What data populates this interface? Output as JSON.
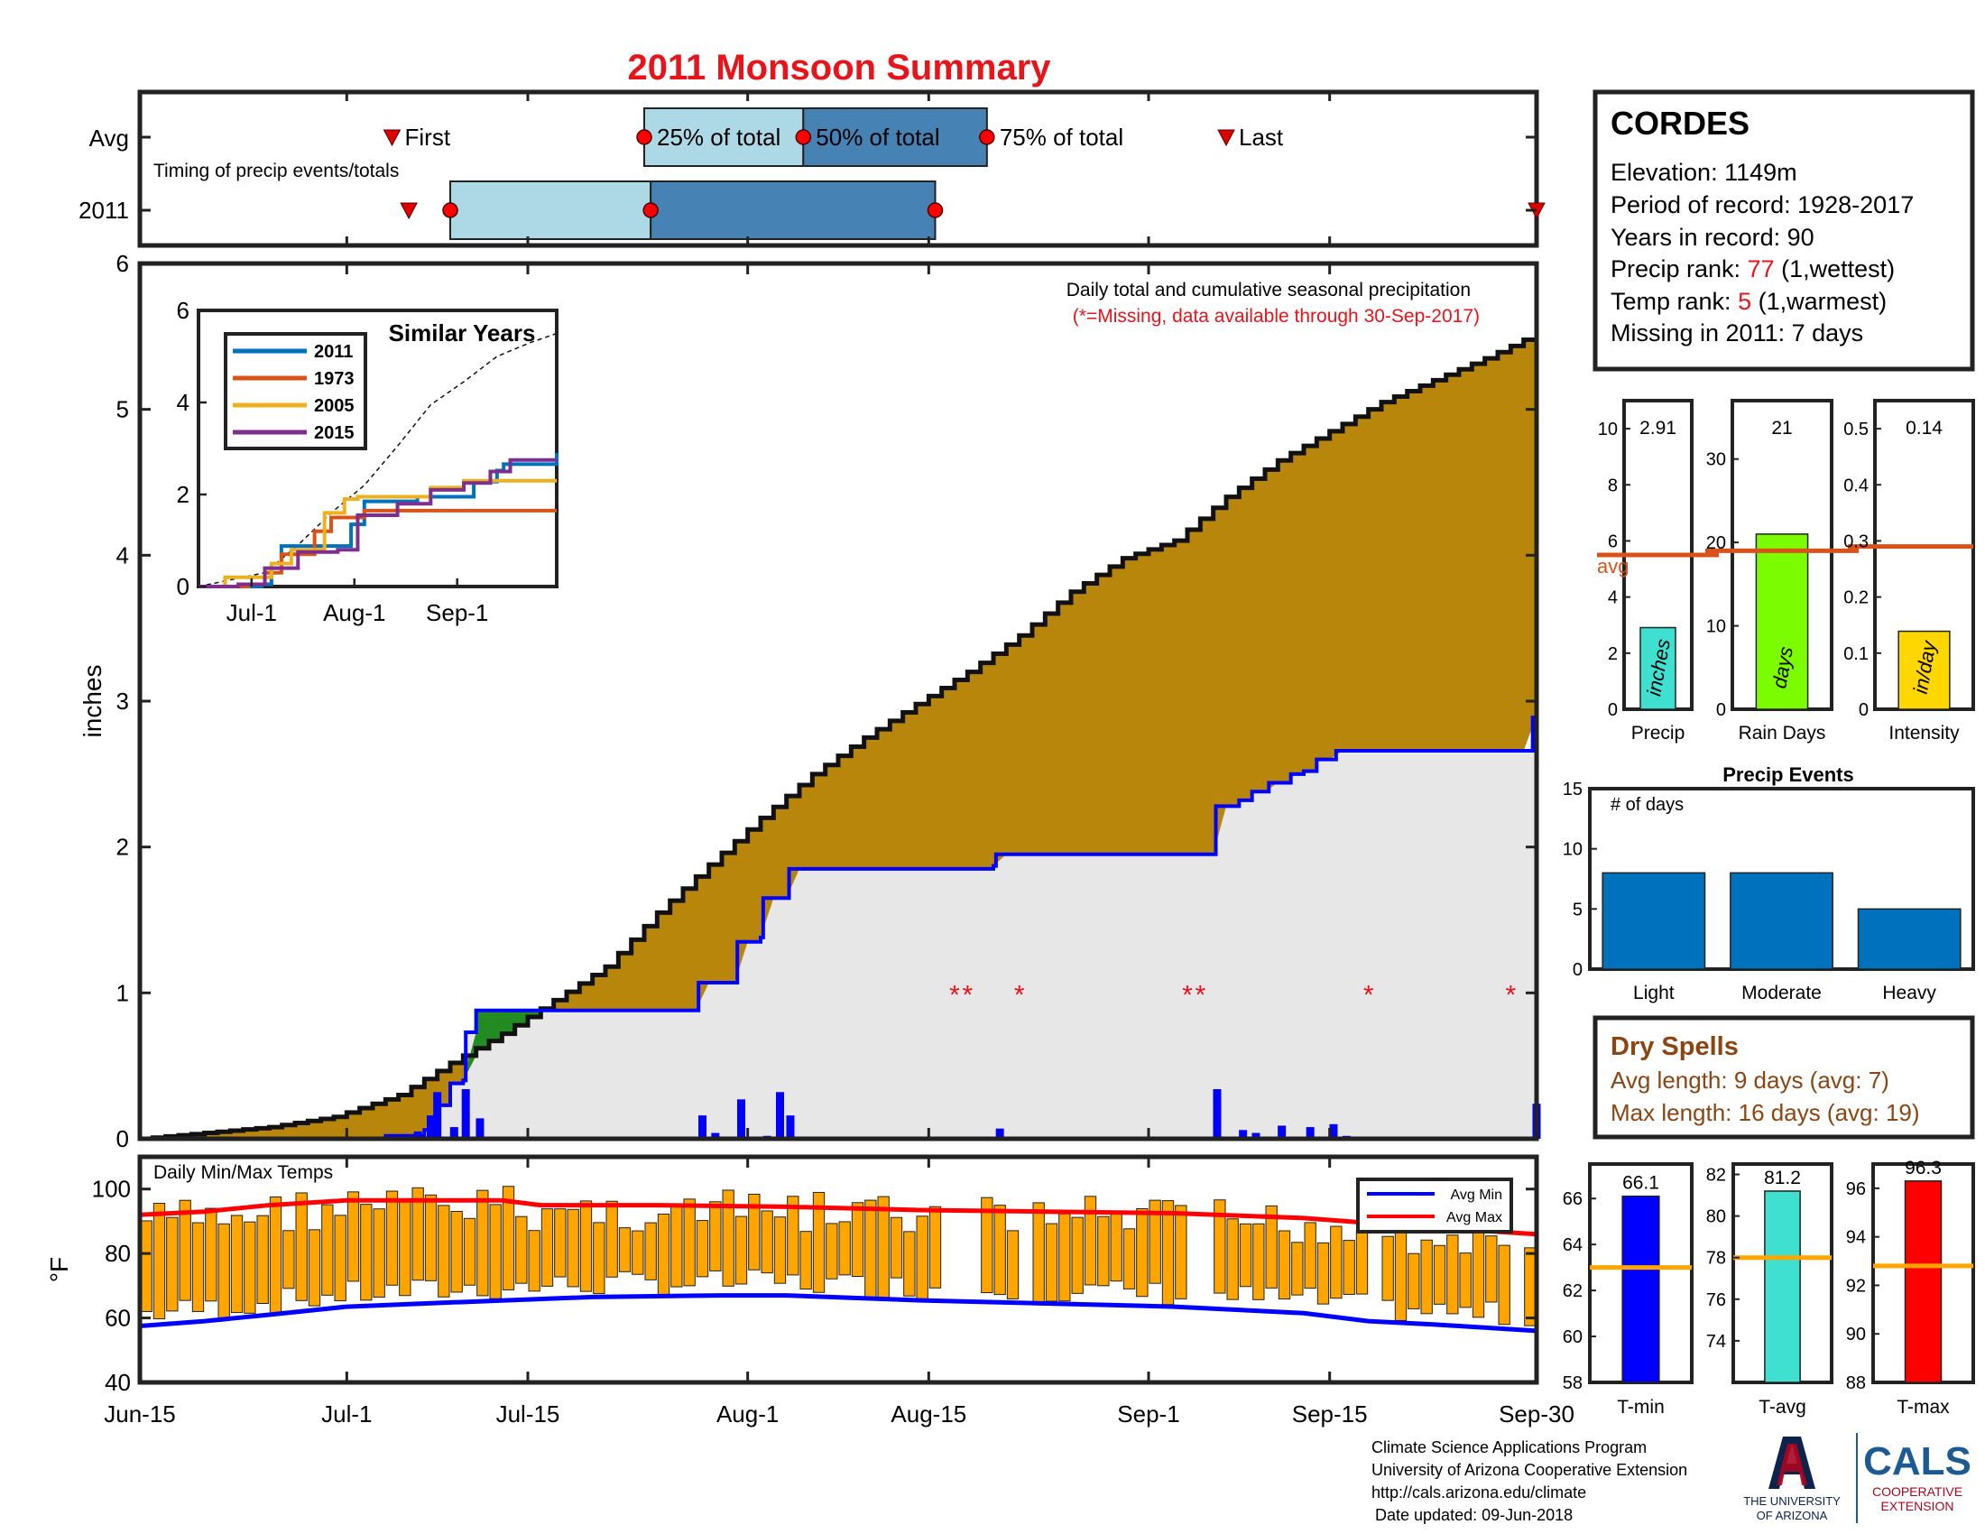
{
  "title": "2011 Monsoon Summary",
  "colors": {
    "title_red": "#e8141a",
    "light_blue": "#add8e6",
    "steel_blue": "#4682b4",
    "cum_brown": "#b8860b",
    "surplus_green": "#228b22",
    "deficit_gray": "#e8e7e7",
    "bar_blue": "#0000ff",
    "orange_bars": "#ffa500",
    "avg_line": "#d95319",
    "teal": "#40e0d0",
    "lime": "#7cfc00",
    "gold": "#ffd700",
    "dry_brown": "#8b4513",
    "event_blue": "#0072bd"
  },
  "timing": {
    "avg_label": "Avg",
    "year_label": "2011",
    "caption": "Timing of precip events/totals",
    "first_label": "First",
    "q25_label": "25% of total",
    "q50_label": "50% of total",
    "q75_label": "75% of total",
    "last_label": "Last",
    "avg": {
      "first": 19.5,
      "q25": 39,
      "q50": 51.3,
      "q75": 65.5,
      "last": 84
    },
    "year": {
      "first": 20.8,
      "q25": 24,
      "q50": 39.5,
      "q75": 61.5,
      "last": 108
    }
  },
  "main": {
    "ylabel": "inches",
    "ylim": [
      0,
      6
    ],
    "yticks": [
      "0",
      "1",
      "2",
      "3",
      "4",
      "5",
      "6"
    ],
    "xticks": [
      {
        "label": "Jun-15",
        "day": 0
      },
      {
        "label": "Jul-1",
        "day": 16
      },
      {
        "label": "Jul-15",
        "day": 30
      },
      {
        "label": "Aug-1",
        "day": 47
      },
      {
        "label": "Aug-15",
        "day": 61
      },
      {
        "label": "Sep-1",
        "day": 78
      },
      {
        "label": "Sep-15",
        "day": 92
      },
      {
        "label": "Sep-30",
        "day": 108
      }
    ],
    "note1": "Daily total and cumulative seasonal precipitation",
    "note2": "(*=Missing, data available through 30-Sep-2017)",
    "missing_marker": "*",
    "missing_days": [
      63,
      64,
      68,
      81,
      82,
      95,
      106
    ],
    "avg_cumulative": [
      [
        0,
        0
      ],
      [
        5,
        0.04
      ],
      [
        10,
        0.08
      ],
      [
        15,
        0.15
      ],
      [
        20,
        0.3
      ],
      [
        24,
        0.52
      ],
      [
        28,
        0.72
      ],
      [
        32,
        0.95
      ],
      [
        36,
        1.18
      ],
      [
        40,
        1.55
      ],
      [
        44,
        1.88
      ],
      [
        48,
        2.2
      ],
      [
        52,
        2.5
      ],
      [
        56,
        2.75
      ],
      [
        60,
        2.98
      ],
      [
        64,
        3.2
      ],
      [
        68,
        3.45
      ],
      [
        72,
        3.75
      ],
      [
        76,
        3.98
      ],
      [
        80,
        4.1
      ],
      [
        84,
        4.4
      ],
      [
        88,
        4.65
      ],
      [
        92,
        4.85
      ],
      [
        96,
        5.05
      ],
      [
        100,
        5.2
      ],
      [
        104,
        5.35
      ],
      [
        108,
        5.52
      ]
    ],
    "obs_cumulative": [
      [
        0,
        0
      ],
      [
        19,
        0.02
      ],
      [
        22,
        0.06
      ],
      [
        23,
        0.23
      ],
      [
        24,
        0.38
      ],
      [
        25,
        0.4
      ],
      [
        25.2,
        0.73
      ],
      [
        26,
        0.88
      ],
      [
        43,
        0.88
      ],
      [
        43.2,
        1.07
      ],
      [
        46,
        1.07
      ],
      [
        46.2,
        1.35
      ],
      [
        48,
        1.38
      ],
      [
        48.2,
        1.65
      ],
      [
        50,
        1.65
      ],
      [
        50.2,
        1.85
      ],
      [
        66,
        1.87
      ],
      [
        66.2,
        1.95
      ],
      [
        83,
        1.95
      ],
      [
        83.2,
        2.28
      ],
      [
        85,
        2.32
      ],
      [
        86,
        2.38
      ],
      [
        87.3,
        2.44
      ],
      [
        89,
        2.5
      ],
      [
        90,
        2.52
      ],
      [
        91,
        2.6
      ],
      [
        92.5,
        2.66
      ],
      [
        107.5,
        2.66
      ],
      [
        107.7,
        2.9
      ]
    ],
    "daily_precip": [
      [
        19.5,
        0.02
      ],
      [
        20.5,
        0.03
      ],
      [
        21.5,
        0.05
      ],
      [
        22.5,
        0.16
      ],
      [
        23,
        0.32
      ],
      [
        24.3,
        0.08
      ],
      [
        25.2,
        0.34
      ],
      [
        26.3,
        0.14
      ],
      [
        43.5,
        0.16
      ],
      [
        44.5,
        0.04
      ],
      [
        46.5,
        0.27
      ],
      [
        48.5,
        0.02
      ],
      [
        49.5,
        0.32
      ],
      [
        50.3,
        0.16
      ],
      [
        66.5,
        0.07
      ],
      [
        83.3,
        0.34
      ],
      [
        85.3,
        0.06
      ],
      [
        86.3,
        0.04
      ],
      [
        88.3,
        0.09
      ],
      [
        90.5,
        0.08
      ],
      [
        92.3,
        0.1
      ],
      [
        93.3,
        0.02
      ],
      [
        108,
        0.24
      ]
    ]
  },
  "similar": {
    "title": "Similar Years",
    "ylim": [
      0,
      6
    ],
    "yticks": [
      "0",
      "2",
      "4",
      "6"
    ],
    "xticks": [
      {
        "label": "Jul-1",
        "day": 16
      },
      {
        "label": "Aug-1",
        "day": 47
      },
      {
        "label": "Sep-1",
        "day": 78
      }
    ],
    "avg_line": [
      [
        0,
        0
      ],
      [
        20,
        0.3
      ],
      [
        30,
        0.9
      ],
      [
        40,
        1.6
      ],
      [
        50,
        2.2
      ],
      [
        60,
        3.05
      ],
      [
        70,
        3.95
      ],
      [
        80,
        4.45
      ],
      [
        90,
        5.0
      ],
      [
        100,
        5.3
      ],
      [
        108,
        5.5
      ]
    ],
    "series": [
      {
        "name": "2011",
        "color": "#0072bd",
        "points": [
          [
            0,
            0
          ],
          [
            19,
            0.05
          ],
          [
            22,
            0.4
          ],
          [
            25,
            0.88
          ],
          [
            43,
            0.88
          ],
          [
            46,
            1.35
          ],
          [
            50,
            1.85
          ],
          [
            66,
            1.95
          ],
          [
            83,
            2.28
          ],
          [
            90,
            2.52
          ],
          [
            92,
            2.66
          ],
          [
            107,
            2.66
          ],
          [
            108,
            2.9
          ]
        ]
      },
      {
        "name": "1973",
        "color": "#d95319",
        "points": [
          [
            0,
            0
          ],
          [
            15,
            0.05
          ],
          [
            20,
            0.3
          ],
          [
            25,
            0.7
          ],
          [
            35,
            1.2
          ],
          [
            40,
            1.5
          ],
          [
            50,
            1.65
          ],
          [
            60,
            1.65
          ],
          [
            108,
            1.65
          ]
        ]
      },
      {
        "name": "2005",
        "color": "#edb120",
        "points": [
          [
            0,
            0
          ],
          [
            8,
            0.2
          ],
          [
            18,
            0.2
          ],
          [
            22,
            0.5
          ],
          [
            28,
            0.8
          ],
          [
            38,
            1.6
          ],
          [
            44,
            1.9
          ],
          [
            48,
            1.95
          ],
          [
            70,
            2.15
          ],
          [
            80,
            2.3
          ],
          [
            108,
            2.3
          ]
        ]
      },
      {
        "name": "2015",
        "color": "#7e2f8e",
        "points": [
          [
            0,
            0
          ],
          [
            12,
            0.05
          ],
          [
            20,
            0.4
          ],
          [
            30,
            0.75
          ],
          [
            42,
            0.8
          ],
          [
            48,
            1.55
          ],
          [
            60,
            1.8
          ],
          [
            70,
            2.1
          ],
          [
            80,
            2.25
          ],
          [
            88,
            2.5
          ],
          [
            94,
            2.75
          ],
          [
            108,
            2.75
          ]
        ]
      }
    ]
  },
  "temps": {
    "title": "Daily Min/Max Temps",
    "ylabel": "°F",
    "ylim": [
      40,
      110
    ],
    "yticks": [
      "40",
      "60",
      "80",
      "100"
    ],
    "legend": [
      "Avg Min",
      "Avg Max"
    ],
    "avg_max": [
      [
        0,
        92
      ],
      [
        5,
        93
      ],
      [
        10,
        95
      ],
      [
        16,
        96.5
      ],
      [
        22,
        96.5
      ],
      [
        28,
        96.5
      ],
      [
        31,
        95
      ],
      [
        40,
        95
      ],
      [
        50,
        94.5
      ],
      [
        60,
        93.5
      ],
      [
        70,
        93
      ],
      [
        80,
        92.5
      ],
      [
        90,
        91
      ],
      [
        100,
        88
      ],
      [
        108,
        86
      ]
    ],
    "avg_min": [
      [
        0,
        57.5
      ],
      [
        5,
        59
      ],
      [
        10,
        61
      ],
      [
        16,
        63.5
      ],
      [
        24,
        64.8
      ],
      [
        35,
        66.5
      ],
      [
        45,
        67
      ],
      [
        50,
        67
      ],
      [
        60,
        65.5
      ],
      [
        70,
        64.5
      ],
      [
        80,
        63.5
      ],
      [
        90,
        61.5
      ],
      [
        95,
        59
      ],
      [
        100,
        58
      ],
      [
        104,
        57
      ],
      [
        108,
        56
      ]
    ]
  },
  "info": {
    "station": "CORDES",
    "elevation": "Elevation: 1149m",
    "period": "Period of record: 1928-2017",
    "years": "Years in record: 90",
    "precip_rank_pre": "Precip rank: ",
    "precip_rank_val": "77",
    "precip_rank_post": " (1,wettest)",
    "temp_rank_pre": "Temp rank: ",
    "temp_rank_val": "5",
    "temp_rank_post": " (1,warmest)",
    "missing": "Missing in 2011: 7 days"
  },
  "stats": [
    {
      "label": "Precip",
      "unit": "inches",
      "value": 2.91,
      "value_label": "2.91",
      "avg": 5.5,
      "ymax": 11,
      "yticks": [
        0,
        2,
        4,
        6,
        8,
        10
      ],
      "color": "#40e0d0",
      "avg_text": "avg"
    },
    {
      "label": "Rain Days",
      "unit": "days",
      "value": 21,
      "value_label": "21",
      "avg": 19,
      "ymax": 37,
      "yticks": [
        0,
        10,
        20,
        30
      ],
      "color": "#7cfc00",
      "avg_text": ""
    },
    {
      "label": "Intensity",
      "unit": "in/day",
      "value": 0.139,
      "value_label": "0.14",
      "avg": 0.29,
      "ymax": 0.55,
      "yticks": [
        0,
        0.1,
        0.2,
        0.3,
        0.4,
        0.5
      ],
      "color": "#ffd700",
      "avg_text": ""
    }
  ],
  "events": {
    "title": "Precip Events",
    "ylabel": "# of days",
    "ylim": [
      0,
      15
    ],
    "yticks": [
      0,
      5,
      10,
      15
    ],
    "categories": [
      "Light",
      "Moderate",
      "Heavy"
    ],
    "values": [
      8,
      8,
      5
    ]
  },
  "dry": {
    "title": "Dry Spells",
    "avg_length": "Avg length: 9 days (avg: 7)",
    "max_length": "Max length: 16 days (avg: 19)"
  },
  "tstats": [
    {
      "label": "T-min",
      "value": 66.1,
      "value_label": "66.1",
      "avg": 63,
      "ylim": [
        58,
        67.5
      ],
      "yticks": [
        58,
        60,
        62,
        64,
        66
      ],
      "color": "#0000ff"
    },
    {
      "label": "T-avg",
      "value": 81.2,
      "value_label": "81.2",
      "avg": 78,
      "ylim": [
        72,
        82.5
      ],
      "yticks": [
        74,
        76,
        78,
        80,
        82
      ],
      "color": "#40e0d0"
    },
    {
      "label": "T-max",
      "value": 96.3,
      "value_label": "96.3",
      "avg": 92.8,
      "ylim": [
        88,
        97
      ],
      "yticks": [
        88,
        90,
        92,
        94,
        96
      ],
      "color": "#ff0000"
    }
  ],
  "footer": {
    "line1": "Climate Science Applications Program",
    "line2": "University of Arizona Cooperative Extension",
    "line3": "http://cals.arizona.edu/climate",
    "line4": "Date updated: 09-Jun-2018",
    "ua_line1": "THE UNIVERSITY",
    "ua_line2": "OF ARIZONA",
    "cals": "CALS",
    "cals_line1": "COOPERATIVE",
    "cals_line2": "EXTENSION"
  }
}
